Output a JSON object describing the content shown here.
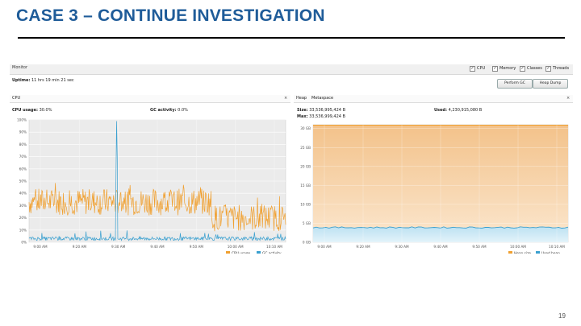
{
  "slide": {
    "title": "CASE 3 – CONTINUE INVESTIGATION",
    "page_number": "19"
  },
  "monitor": {
    "title": "Monitor",
    "checkboxes": [
      {
        "label": "CPU",
        "checked": true
      },
      {
        "label": "Memory",
        "checked": true
      },
      {
        "label": "Classes",
        "checked": true
      },
      {
        "label": "Threads",
        "checked": true
      }
    ],
    "uptime_label": "Uptime:",
    "uptime_value": "11 hrs 19 min 21 sec",
    "buttons": {
      "perform_gc": "Perform GC",
      "heap_dump": "Heap Dump"
    }
  },
  "cpu_panel": {
    "tab": "CPU",
    "cpu_usage_label": "CPU usage:",
    "cpu_usage_value": "30.0%",
    "gc_activity_label": "GC activity:",
    "gc_activity_value": "0.0%",
    "legend": [
      {
        "label": "CPU usage",
        "color": "#f0a030"
      },
      {
        "label": "GC activity",
        "color": "#3aa0d0"
      }
    ]
  },
  "heap_panel": {
    "tabs": [
      "Heap",
      "Metaspace"
    ],
    "size_label": "Size:",
    "size_value": "33,536,995,424 B",
    "used_label": "Used:",
    "used_value": "4,230,915,080 B",
    "max_label": "Max:",
    "max_value": "33,536,999,424 B",
    "legend": [
      {
        "label": "Heap size",
        "color": "#f0a030"
      },
      {
        "label": "Used heap",
        "color": "#3aa0d0"
      }
    ]
  },
  "chart_data": [
    {
      "type": "line",
      "title": "",
      "xlabel": "",
      "ylabel": "",
      "x_ticks": [
        "9:00 AM",
        "9:20 AM",
        "9:30 AM",
        "9:40 AM",
        "9:50 AM",
        "10:00 AM",
        "10:10 AM"
      ],
      "y_ticks": [
        "100%",
        "90%",
        "80%",
        "70%",
        "60%",
        "50%",
        "40%",
        "30%",
        "20%",
        "10%",
        "0%"
      ],
      "ylim": [
        0,
        100
      ],
      "grid": true,
      "legend_position": "bottom-right",
      "series": [
        {
          "name": "CPU usage",
          "color": "#f0a030",
          "pattern": "noisy ~30-35% until 10:00 AM, ~15-25% after",
          "approx_level_before": 33,
          "approx_level_after": 20
        },
        {
          "name": "GC activity",
          "color": "#3aa0d0",
          "pattern": "near 3%, single spike ~99% at 9:30 AM",
          "approx_level": 3,
          "spike_x": "9:30 AM",
          "spike_value": 99
        }
      ]
    },
    {
      "type": "area",
      "title": "",
      "xlabel": "",
      "ylabel": "",
      "x_ticks": [
        "9:00 AM",
        "9:20 AM",
        "9:30 AM",
        "9:40 AM",
        "9:50 AM",
        "10:00 AM",
        "10:10 AM"
      ],
      "y_ticks": [
        "30 GB",
        "25 GB",
        "20 GB",
        "15 GB",
        "10 GB",
        "5 GB",
        "0 GB"
      ],
      "ylim": [
        0,
        31
      ],
      "grid": true,
      "legend_position": "bottom-right",
      "series": [
        {
          "name": "Heap size",
          "color": "#f0a030",
          "value_gb": 31.2
        },
        {
          "name": "Used heap",
          "color": "#3aa0d0",
          "value_gb": 3.9
        }
      ]
    }
  ]
}
